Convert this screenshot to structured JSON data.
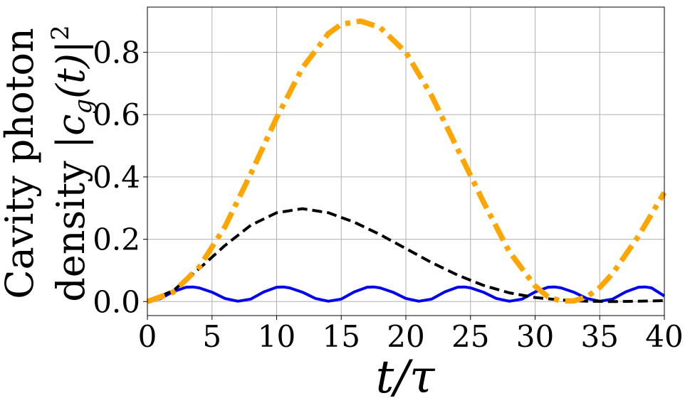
{
  "chart_data": {
    "type": "line",
    "xlabel": "t/τ",
    "ylabel_line1": "Cavity photon",
    "ylabel_line2": "density |c_g(t)|²",
    "ylabel_line2_prefix": "density ",
    "ylabel_line2_math": "|c",
    "ylabel_line2_sub": "g",
    "ylabel_line2_tail": "(t)|",
    "ylabel_line2_sup": "2",
    "xlim": [
      0,
      40
    ],
    "ylim": [
      -0.045,
      0.945
    ],
    "x_ticks": [
      "0",
      "5",
      "10",
      "15",
      "20",
      "25",
      "30",
      "35",
      "40"
    ],
    "y_ticks": [
      "0.0",
      "0.2",
      "0.4",
      "0.6",
      "0.8"
    ],
    "grid": true,
    "series": [
      {
        "style": "solid",
        "color": "#0000ee",
        "x": [
          0,
          1,
          2,
          3,
          3.5,
          4,
          5,
          6,
          7,
          8,
          9,
          10,
          10.5,
          11,
          12,
          13,
          14,
          15,
          16,
          17,
          17.5,
          18,
          19,
          20,
          21,
          22,
          23,
          24,
          24.5,
          25,
          26,
          27,
          28,
          29,
          30,
          31,
          31.5,
          32,
          33,
          34,
          35,
          36,
          37,
          38,
          38.5,
          39,
          40
        ],
        "y": [
          0.0,
          0.009,
          0.032,
          0.046,
          0.047,
          0.044,
          0.03,
          0.01,
          0.001,
          0.008,
          0.031,
          0.046,
          0.047,
          0.044,
          0.03,
          0.01,
          0.001,
          0.008,
          0.031,
          0.046,
          0.047,
          0.044,
          0.03,
          0.01,
          0.001,
          0.008,
          0.031,
          0.046,
          0.047,
          0.044,
          0.03,
          0.01,
          0.001,
          0.008,
          0.031,
          0.046,
          0.047,
          0.044,
          0.03,
          0.01,
          0.001,
          0.008,
          0.031,
          0.046,
          0.047,
          0.044,
          0.018
        ]
      },
      {
        "style": "dashed",
        "color": "#000000",
        "x": [
          0,
          2,
          4,
          6,
          8,
          10,
          12,
          14,
          16,
          18,
          20,
          22,
          24,
          26,
          28,
          30,
          32,
          34,
          36,
          38,
          40
        ],
        "y": [
          0.0,
          0.035,
          0.105,
          0.18,
          0.245,
          0.285,
          0.298,
          0.285,
          0.255,
          0.215,
          0.17,
          0.125,
          0.085,
          0.052,
          0.028,
          0.013,
          0.005,
          0.001,
          0.0,
          0.001,
          0.003
        ]
      },
      {
        "style": "dashdot",
        "color": "#ffa500",
        "x": [
          0,
          2,
          4,
          6,
          8,
          10,
          12,
          14,
          15,
          16.5,
          18,
          20,
          22,
          24,
          26,
          28,
          30,
          31,
          32,
          33,
          34,
          35,
          36,
          38,
          40
        ],
        "y": [
          0.0,
          0.03,
          0.11,
          0.24,
          0.41,
          0.59,
          0.75,
          0.86,
          0.89,
          0.9,
          0.88,
          0.8,
          0.66,
          0.49,
          0.32,
          0.16,
          0.05,
          0.015,
          0.002,
          0.002,
          0.015,
          0.045,
          0.09,
          0.21,
          0.35
        ]
      }
    ]
  }
}
